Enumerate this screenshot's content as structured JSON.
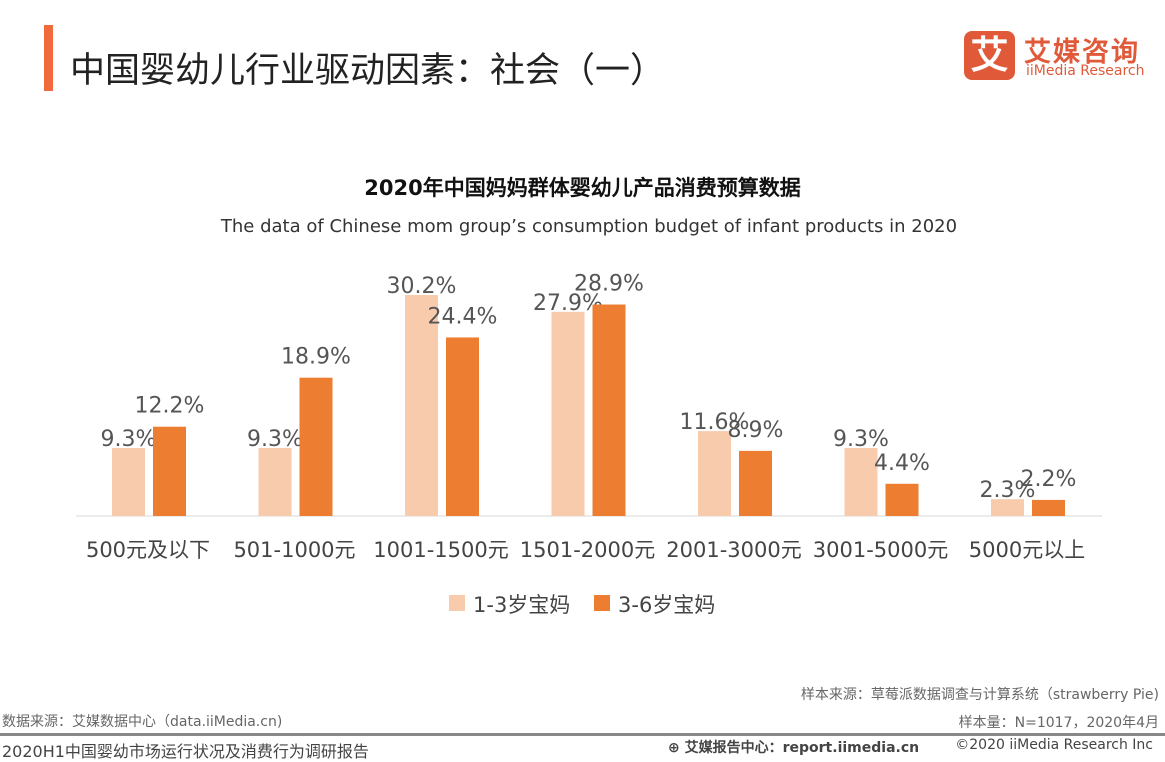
{
  "header": {
    "title": "中国婴幼儿行业驱动因素：社会（一）",
    "logo_cn": "艾媒咨询",
    "logo_en": "iiMedia Research",
    "logo_mark": "艾"
  },
  "chart_data": {
    "type": "bar",
    "title": "2020年中国妈妈群体婴幼儿产品消费预算数据",
    "subtitle": "The data of Chinese mom group’s  consumption  budget of infant products in 2020",
    "categories": [
      "500元及以下",
      "501-1000元",
      "1001-1500元",
      "1501-2000元",
      "2001-3000元",
      "3001-5000元",
      "5000元以上"
    ],
    "series": [
      {
        "name": "1-3岁宝妈",
        "color": "#f8cbad",
        "values": [
          9.3,
          9.3,
          30.2,
          27.9,
          11.6,
          9.3,
          2.3
        ],
        "labels": [
          "9.3%",
          "9.3%",
          "30.2%",
          "27.9%",
          "11.6%",
          "9.3%",
          "2.3%"
        ]
      },
      {
        "name": "3-6岁宝妈",
        "color": "#ed7d31",
        "values": [
          12.2,
          18.9,
          24.4,
          28.9,
          8.9,
          4.4,
          2.2
        ],
        "labels": [
          "12.2%",
          "18.9%",
          "24.4%",
          "28.9%",
          "8.9%",
          "4.4%",
          "2.2%"
        ]
      }
    ],
    "ylim": [
      0,
      30.2
    ],
    "legend": "bottom"
  },
  "footer": {
    "sample_source": "样本来源：草莓派数据调查与计算系统（strawberry Pie)",
    "data_source": "数据来源：艾媒数据中心（data.iiMedia.cn)",
    "sample_size": "样本量：N=1017，2020年4月",
    "report_name": "2020H1中国婴幼市场运行状况及消费行为调研报告",
    "report_center": "艾媒报告中心：report.iimedia.cn",
    "copyright": "©2020  iiMedia Research  Inc"
  }
}
